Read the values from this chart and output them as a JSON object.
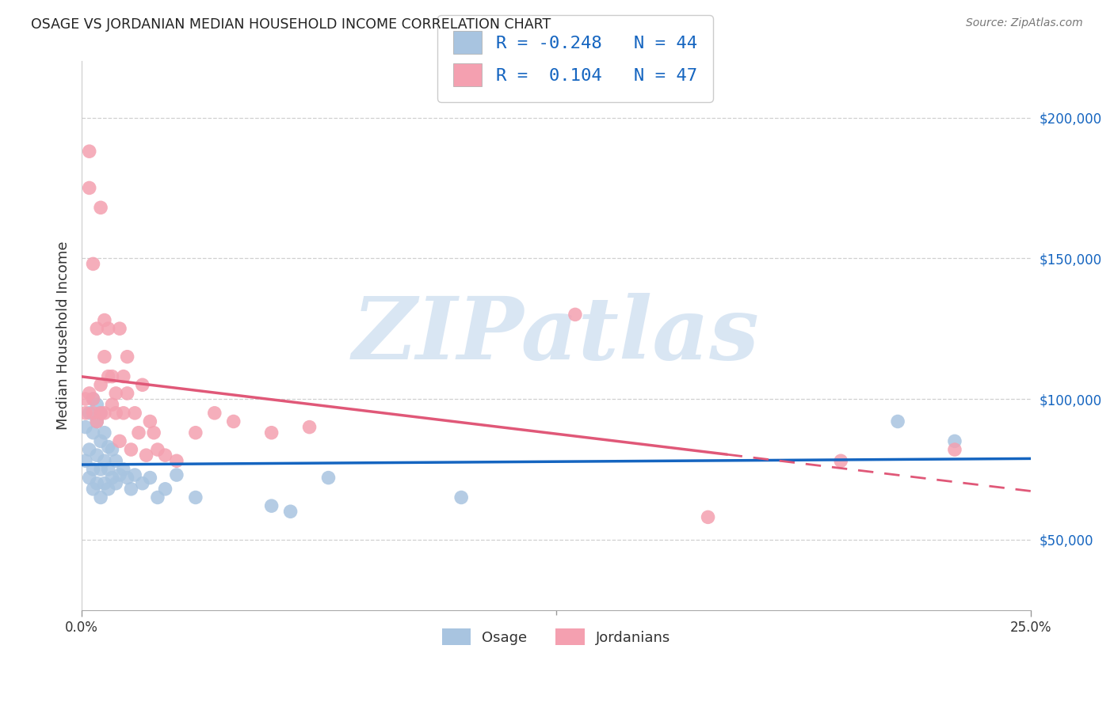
{
  "title": "OSAGE VS JORDANIAN MEDIAN HOUSEHOLD INCOME CORRELATION CHART",
  "source": "Source: ZipAtlas.com",
  "ylabel": "Median Household Income",
  "yticks": [
    50000,
    100000,
    150000,
    200000
  ],
  "ytick_labels": [
    "$50,000",
    "$100,000",
    "$150,000",
    "$200,000"
  ],
  "xlim": [
    0.0,
    0.25
  ],
  "ylim": [
    25000,
    220000
  ],
  "r_osage": -0.248,
  "n_osage": 44,
  "r_jordan": 0.104,
  "n_jordan": 47,
  "osage_color": "#a8c4e0",
  "jordan_color": "#f4a0b0",
  "osage_line_color": "#1565c0",
  "jordan_line_color": "#e05878",
  "watermark": "ZIPatlas",
  "watermark_color": "#c5d9ee",
  "legend_osage": "Osage",
  "legend_jordan": "Jordanians",
  "osage_x": [
    0.001,
    0.001,
    0.002,
    0.002,
    0.002,
    0.003,
    0.003,
    0.003,
    0.003,
    0.004,
    0.004,
    0.004,
    0.004,
    0.005,
    0.005,
    0.005,
    0.005,
    0.006,
    0.006,
    0.006,
    0.007,
    0.007,
    0.007,
    0.008,
    0.008,
    0.009,
    0.009,
    0.01,
    0.011,
    0.012,
    0.013,
    0.014,
    0.016,
    0.018,
    0.02,
    0.022,
    0.025,
    0.03,
    0.05,
    0.055,
    0.065,
    0.1,
    0.215,
    0.23
  ],
  "osage_y": [
    78000,
    90000,
    72000,
    82000,
    95000,
    68000,
    75000,
    88000,
    100000,
    70000,
    80000,
    92000,
    98000,
    65000,
    75000,
    85000,
    95000,
    70000,
    78000,
    88000,
    68000,
    75000,
    83000,
    72000,
    82000,
    70000,
    78000,
    73000,
    75000,
    72000,
    68000,
    73000,
    70000,
    72000,
    65000,
    68000,
    73000,
    65000,
    62000,
    60000,
    72000,
    65000,
    92000,
    85000
  ],
  "jordan_x": [
    0.001,
    0.001,
    0.002,
    0.002,
    0.002,
    0.003,
    0.003,
    0.003,
    0.004,
    0.004,
    0.005,
    0.005,
    0.005,
    0.006,
    0.006,
    0.006,
    0.007,
    0.007,
    0.008,
    0.008,
    0.009,
    0.009,
    0.01,
    0.01,
    0.011,
    0.011,
    0.012,
    0.012,
    0.013,
    0.014,
    0.015,
    0.016,
    0.017,
    0.018,
    0.019,
    0.02,
    0.022,
    0.025,
    0.03,
    0.035,
    0.04,
    0.05,
    0.06,
    0.13,
    0.165,
    0.2,
    0.23
  ],
  "jordan_y": [
    100000,
    95000,
    188000,
    175000,
    102000,
    148000,
    100000,
    95000,
    125000,
    92000,
    168000,
    105000,
    95000,
    128000,
    115000,
    95000,
    108000,
    125000,
    98000,
    108000,
    102000,
    95000,
    125000,
    85000,
    108000,
    95000,
    102000,
    115000,
    82000,
    95000,
    88000,
    105000,
    80000,
    92000,
    88000,
    82000,
    80000,
    78000,
    88000,
    95000,
    92000,
    88000,
    90000,
    130000,
    58000,
    78000,
    82000
  ]
}
